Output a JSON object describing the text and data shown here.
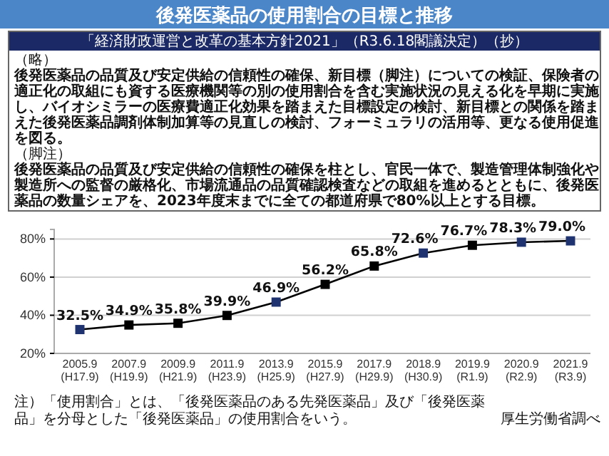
{
  "chart_data": {
    "type": "line",
    "title": "後発医薬品の使用割合の目標と推移",
    "subtitle": "「経済財政運営と改革の基本方針2021」（R3.6.18閣議決定）（抄）",
    "annotations": [
      "（略）",
      "後発医薬品の品質及び安定供給の信頼性の確保、新目標（脚注）についての検証、保険者の適正化の取組にも資する医療機関等の別の使用割合を含む実施状況の見える化を早期に実施し、バイオシミラーの医療費適正化効果を踏まえた目標設定の検討、新目標との関係を踏まえた後発医薬品調剤体制加算等の見直しの検討、フォーミュラリの活用等、更なる使用促進を図る。",
      "（脚注）",
      "後発医薬品の品質及び安定供給の信頼性の確保を柱とし、官民一体で、製造管理体制強化や製造所への監督の厳格化、市場流通品の品質確認検査などの取組を進めるとともに、後発医薬品の数量シェアを、2023年度末までに全ての都道府県で80%以上とする目標。",
      "注）「使用割合」とは、「後発医薬品のある先発医薬品」及び「後発医薬品」を分母とした「後発医薬品」の使用割合をいう。",
      "厚生労働省調べ"
    ],
    "categories": [
      "2005.9\n(H17.9)",
      "2007.9\n(H19.9)",
      "2009.9\n(H21.9)",
      "2011.9\n(H23.9)",
      "2013.9\n(H25.9)",
      "2015.9\n(H27.9)",
      "2017.9\n(H29.9)",
      "2018.9\n(H30.9)",
      "2019.9\n(R1.9)",
      "2020.9\n(R2.9)",
      "2021.9\n(R3.9)"
    ],
    "series": [
      {
        "color": "#000000",
        "colors": [
          "#1f3370",
          "#000000",
          "#000000",
          "#000000",
          "#1f3370",
          "#000000",
          "#000000",
          "#1f3370",
          "#000000",
          "#1f3370",
          "#1f3370"
        ],
        "values": [
          32.5,
          34.9,
          35.8,
          39.9,
          46.9,
          56.2,
          65.8,
          72.6,
          76.7,
          78.3,
          79.0
        ],
        "value_labels": [
          "32.5%",
          "34.9%",
          "35.8%",
          "39.9%",
          "46.9%",
          "56.2%",
          "65.8%",
          "72.6%",
          "76.7%",
          "78.3%",
          "79.0%"
        ]
      }
    ],
    "ylim": [
      20,
      85
    ],
    "yticks": [
      {
        "value": 20,
        "label": "20%"
      },
      {
        "value": 40,
        "label": "40%"
      },
      {
        "value": 60,
        "label": "60%"
      },
      {
        "value": 80,
        "label": "80%"
      }
    ],
    "grid": "y",
    "marker": "square",
    "line_style": "solid"
  }
}
